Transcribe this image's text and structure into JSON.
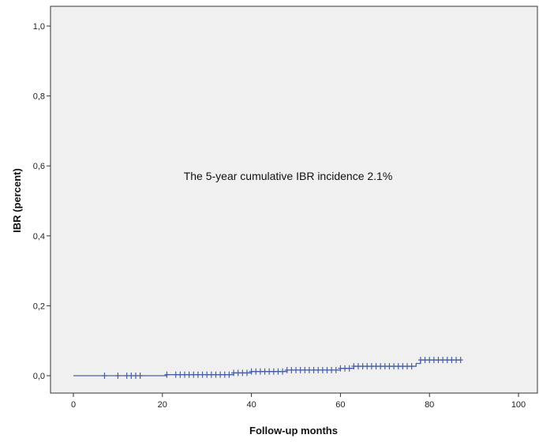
{
  "chart_data": {
    "type": "line",
    "title": "",
    "xlabel": "Follow-up months",
    "ylabel": "IBR (percent)",
    "xlim": [
      0,
      100
    ],
    "ylim": [
      0,
      1.0
    ],
    "x_ticks": [
      0,
      20,
      40,
      60,
      80,
      100
    ],
    "x_tick_labels": [
      "0",
      "20",
      "40",
      "60",
      "80",
      "100"
    ],
    "y_ticks": [
      0,
      0.2,
      0.4,
      0.6,
      0.8,
      1.0
    ],
    "y_tick_labels": [
      "0,0",
      "0,2",
      "0,4",
      "0,6",
      "0,8",
      "1,0"
    ],
    "grid": false,
    "legend": "none",
    "annotation": "The 5-year cumulative IBR incidence 2.1%",
    "colors": {
      "line": "#4a5fa0",
      "plot_background": "#f0f0f0",
      "axis": "#333333"
    },
    "series": [
      {
        "step_points": [
          {
            "x": 0,
            "y": 0.0
          },
          {
            "x": 21,
            "y": 0.003
          },
          {
            "x": 36,
            "y": 0.008
          },
          {
            "x": 40,
            "y": 0.012
          },
          {
            "x": 48,
            "y": 0.016
          },
          {
            "x": 60,
            "y": 0.021
          },
          {
            "x": 63,
            "y": 0.027
          },
          {
            "x": 77,
            "y": 0.035
          },
          {
            "x": 78,
            "y": 0.045
          },
          {
            "x": 87,
            "y": 0.045
          }
        ],
        "censor_x": [
          7,
          10,
          12,
          13,
          14,
          15,
          21,
          23,
          24,
          25,
          26,
          27,
          28,
          29,
          30,
          31,
          32,
          33,
          34,
          35,
          36,
          37,
          38,
          39,
          40,
          41,
          42,
          43,
          44,
          45,
          46,
          47,
          48,
          49,
          50,
          51,
          52,
          53,
          54,
          55,
          56,
          57,
          58,
          59,
          60,
          61,
          62,
          63,
          64,
          65,
          66,
          67,
          68,
          69,
          70,
          71,
          72,
          73,
          74,
          75,
          76,
          78,
          79,
          80,
          81,
          82,
          83,
          84,
          85,
          86,
          87
        ]
      }
    ]
  }
}
